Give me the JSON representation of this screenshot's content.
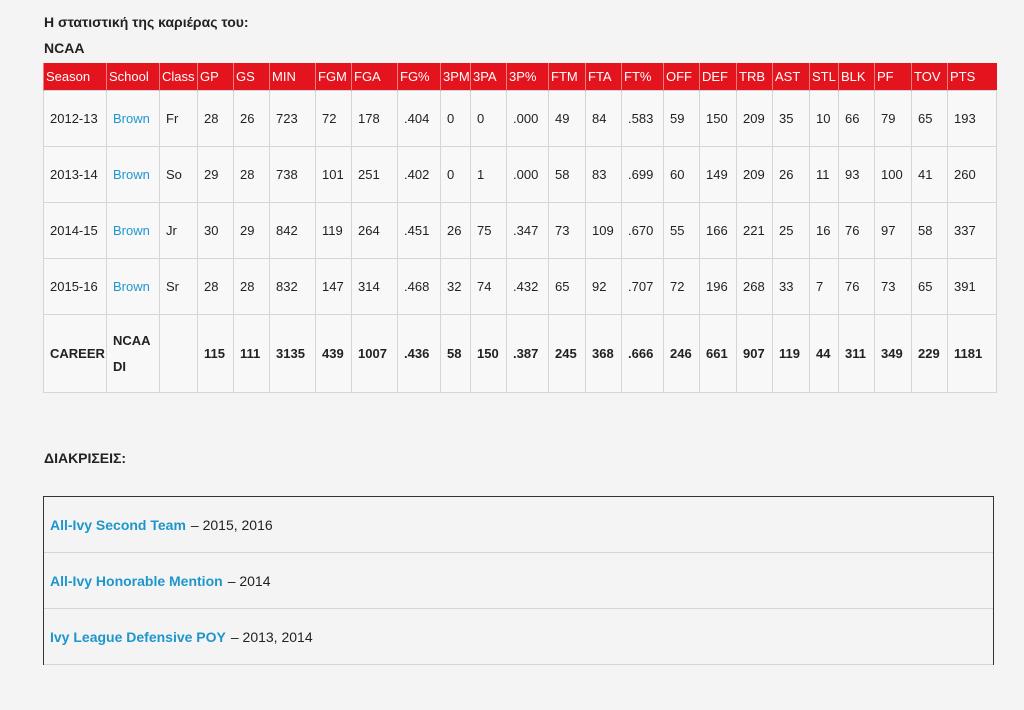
{
  "heading": "Η στατιστική της καριέρας του:",
  "subheading": "NCAA",
  "table": {
    "headers": [
      "Season",
      "School",
      "Class",
      "GP",
      "GS",
      "MIN",
      "FGM",
      "FGA",
      "FG%",
      "3PM",
      "3PA",
      "3P%",
      "FTM",
      "FTA",
      "FT%",
      "OFF",
      "DEF",
      "TRB",
      "AST",
      "STL",
      "BLK",
      "PF",
      "TOV",
      "PTS"
    ],
    "rows": [
      [
        "2012-13",
        "Brown",
        "Fr",
        "28",
        "26",
        "723",
        "72",
        "178",
        ".404",
        "0",
        "0",
        ".000",
        "49",
        "84",
        ".583",
        "59",
        "150",
        "209",
        "35",
        "10",
        "66",
        "79",
        "65",
        "193"
      ],
      [
        "2013-14",
        "Brown",
        "So",
        "29",
        "28",
        "738",
        "101",
        "251",
        ".402",
        "0",
        "1",
        ".000",
        "58",
        "83",
        ".699",
        "60",
        "149",
        "209",
        "26",
        "11",
        "93",
        "100",
        "41",
        "260"
      ],
      [
        "2014-15",
        "Brown",
        "Jr",
        "30",
        "29",
        "842",
        "119",
        "264",
        ".451",
        "26",
        "75",
        ".347",
        "73",
        "109",
        ".670",
        "55",
        "166",
        "221",
        "25",
        "16",
        "76",
        "97",
        "58",
        "337"
      ],
      [
        "2015-16",
        "Brown",
        "Sr",
        "28",
        "28",
        "832",
        "147",
        "314",
        ".468",
        "32",
        "74",
        ".432",
        "65",
        "92",
        ".707",
        "72",
        "196",
        "268",
        "33",
        "7",
        "76",
        "73",
        "65",
        "391"
      ]
    ],
    "career": {
      "label": "CAREER",
      "school": "NCAA DI",
      "stats": [
        "115",
        "111",
        "3135",
        "439",
        "1007",
        ".436",
        "58",
        "150",
        ".387",
        "245",
        "368",
        ".666",
        "246",
        "661",
        "907",
        "119",
        "44",
        "311",
        "349",
        "229",
        "1181"
      ]
    }
  },
  "honors_title": "ΔΙΑΚΡΙΣΕΙΣ:",
  "honors": [
    {
      "name": "All-Ivy Second Team",
      "years": "– 2015, 2016"
    },
    {
      "name": "All-Ivy Honorable Mention",
      "years": "– 2014"
    },
    {
      "name": "Ivy League Defensive POY",
      "years": "– 2013, 2014"
    }
  ]
}
